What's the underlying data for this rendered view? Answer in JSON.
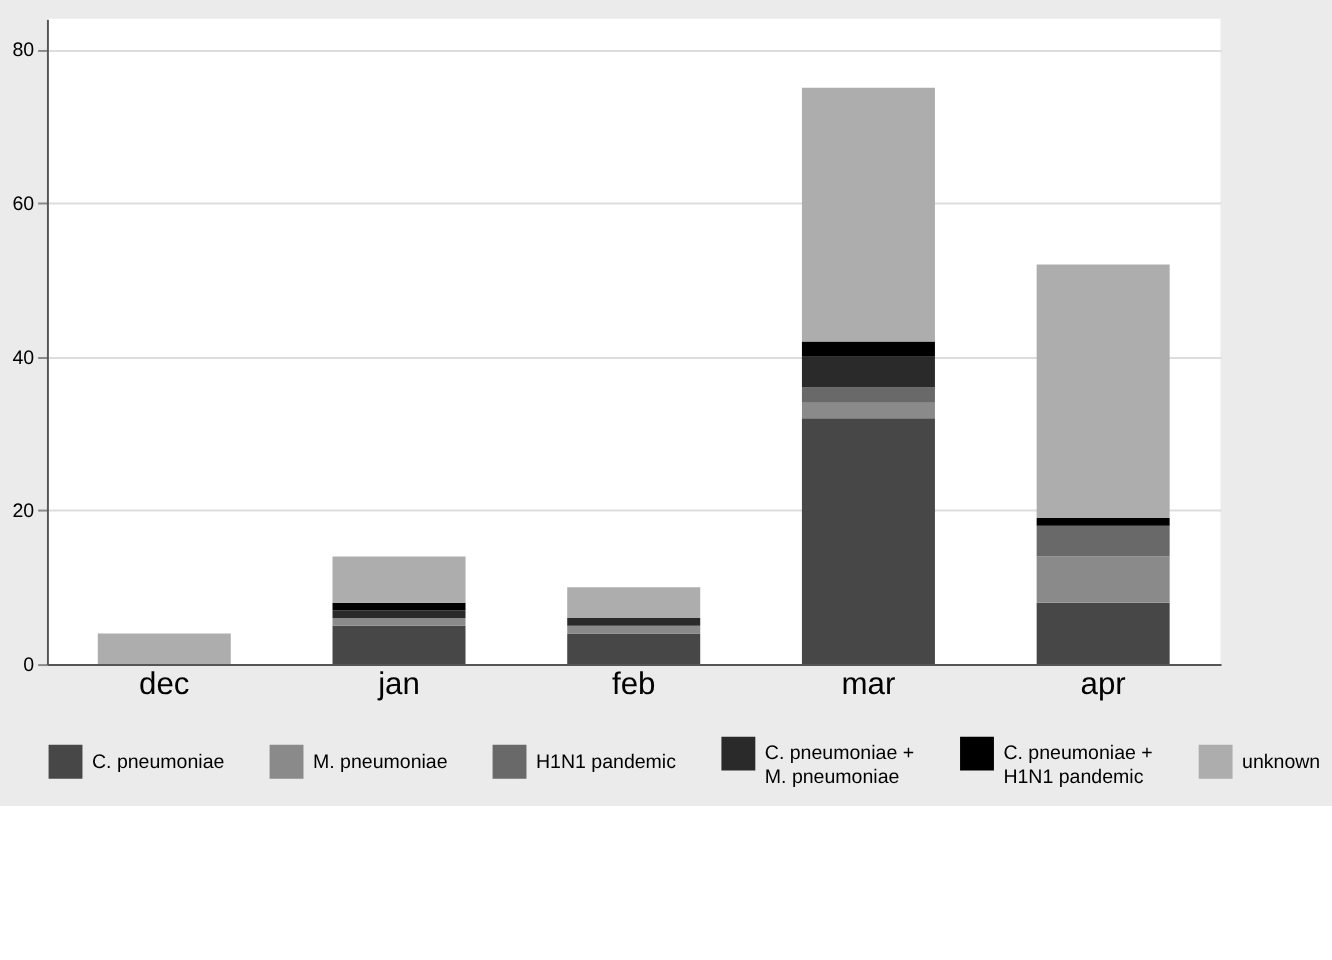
{
  "chart_data": {
    "type": "bar",
    "stacked": true,
    "categories": [
      "dec",
      "jan",
      "feb",
      "mar",
      "apr"
    ],
    "series": [
      {
        "name": "C. pneumoniae",
        "color": "#474747",
        "values": [
          0,
          5,
          4,
          32,
          8
        ]
      },
      {
        "name": "M. pneumoniae",
        "color": "#8a8a8a",
        "values": [
          0,
          1,
          1,
          2,
          6
        ]
      },
      {
        "name": "H1N1 pandemic",
        "color": "#696969",
        "values": [
          0,
          0,
          0,
          2,
          4
        ]
      },
      {
        "name": "C. pneumoniae + M. pneumoniae",
        "color": "#2a2a2a",
        "values": [
          0,
          1,
          1,
          4,
          0
        ]
      },
      {
        "name": "C. pneumoniae + H1N1 pandemic",
        "color": "#000000",
        "values": [
          0,
          1,
          0,
          2,
          1
        ]
      },
      {
        "name": "unknown",
        "color": "#adadad",
        "values": [
          4,
          6,
          4,
          33,
          33
        ]
      }
    ],
    "ylim": [
      0,
      84
    ],
    "yticks": [
      0,
      20,
      40,
      60,
      80
    ],
    "grid": "y",
    "legend": "bottom"
  }
}
